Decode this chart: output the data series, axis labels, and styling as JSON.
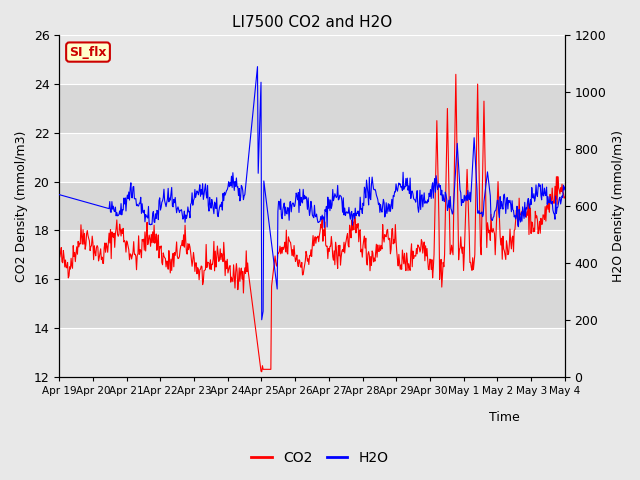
{
  "title": "LI7500 CO2 and H2O",
  "xlabel": "Time",
  "ylabel_left": "CO2 Density (mmol/m3)",
  "ylabel_right": "H2O Density (mmol/m3)",
  "ylim_left": [
    12,
    26
  ],
  "ylim_right": [
    0,
    1200
  ],
  "yticks_left": [
    12,
    14,
    16,
    18,
    20,
    22,
    24,
    26
  ],
  "yticks_right": [
    0,
    200,
    400,
    600,
    800,
    1000,
    1200
  ],
  "xtick_labels": [
    "Apr 19",
    "Apr 20",
    "Apr 21",
    "Apr 22",
    "Apr 23",
    "Apr 24",
    "Apr 25",
    "Apr 26",
    "Apr 27",
    "Apr 28",
    "Apr 29",
    "Apr 30",
    "May 1",
    "May 2",
    "May 3",
    "May 4"
  ],
  "co2_color": "#ff0000",
  "h2o_color": "#0000ff",
  "bg_color": "#e8e8e8",
  "band_light": "#e8e8e8",
  "band_dark": "#d8d8d8",
  "watermark_text": "SI_flx",
  "watermark_bg": "#ffffcc",
  "watermark_border": "#cc0000",
  "legend_co2": "CO2",
  "legend_h2o": "H2O",
  "n_days": 15,
  "pts_per_day": 48
}
